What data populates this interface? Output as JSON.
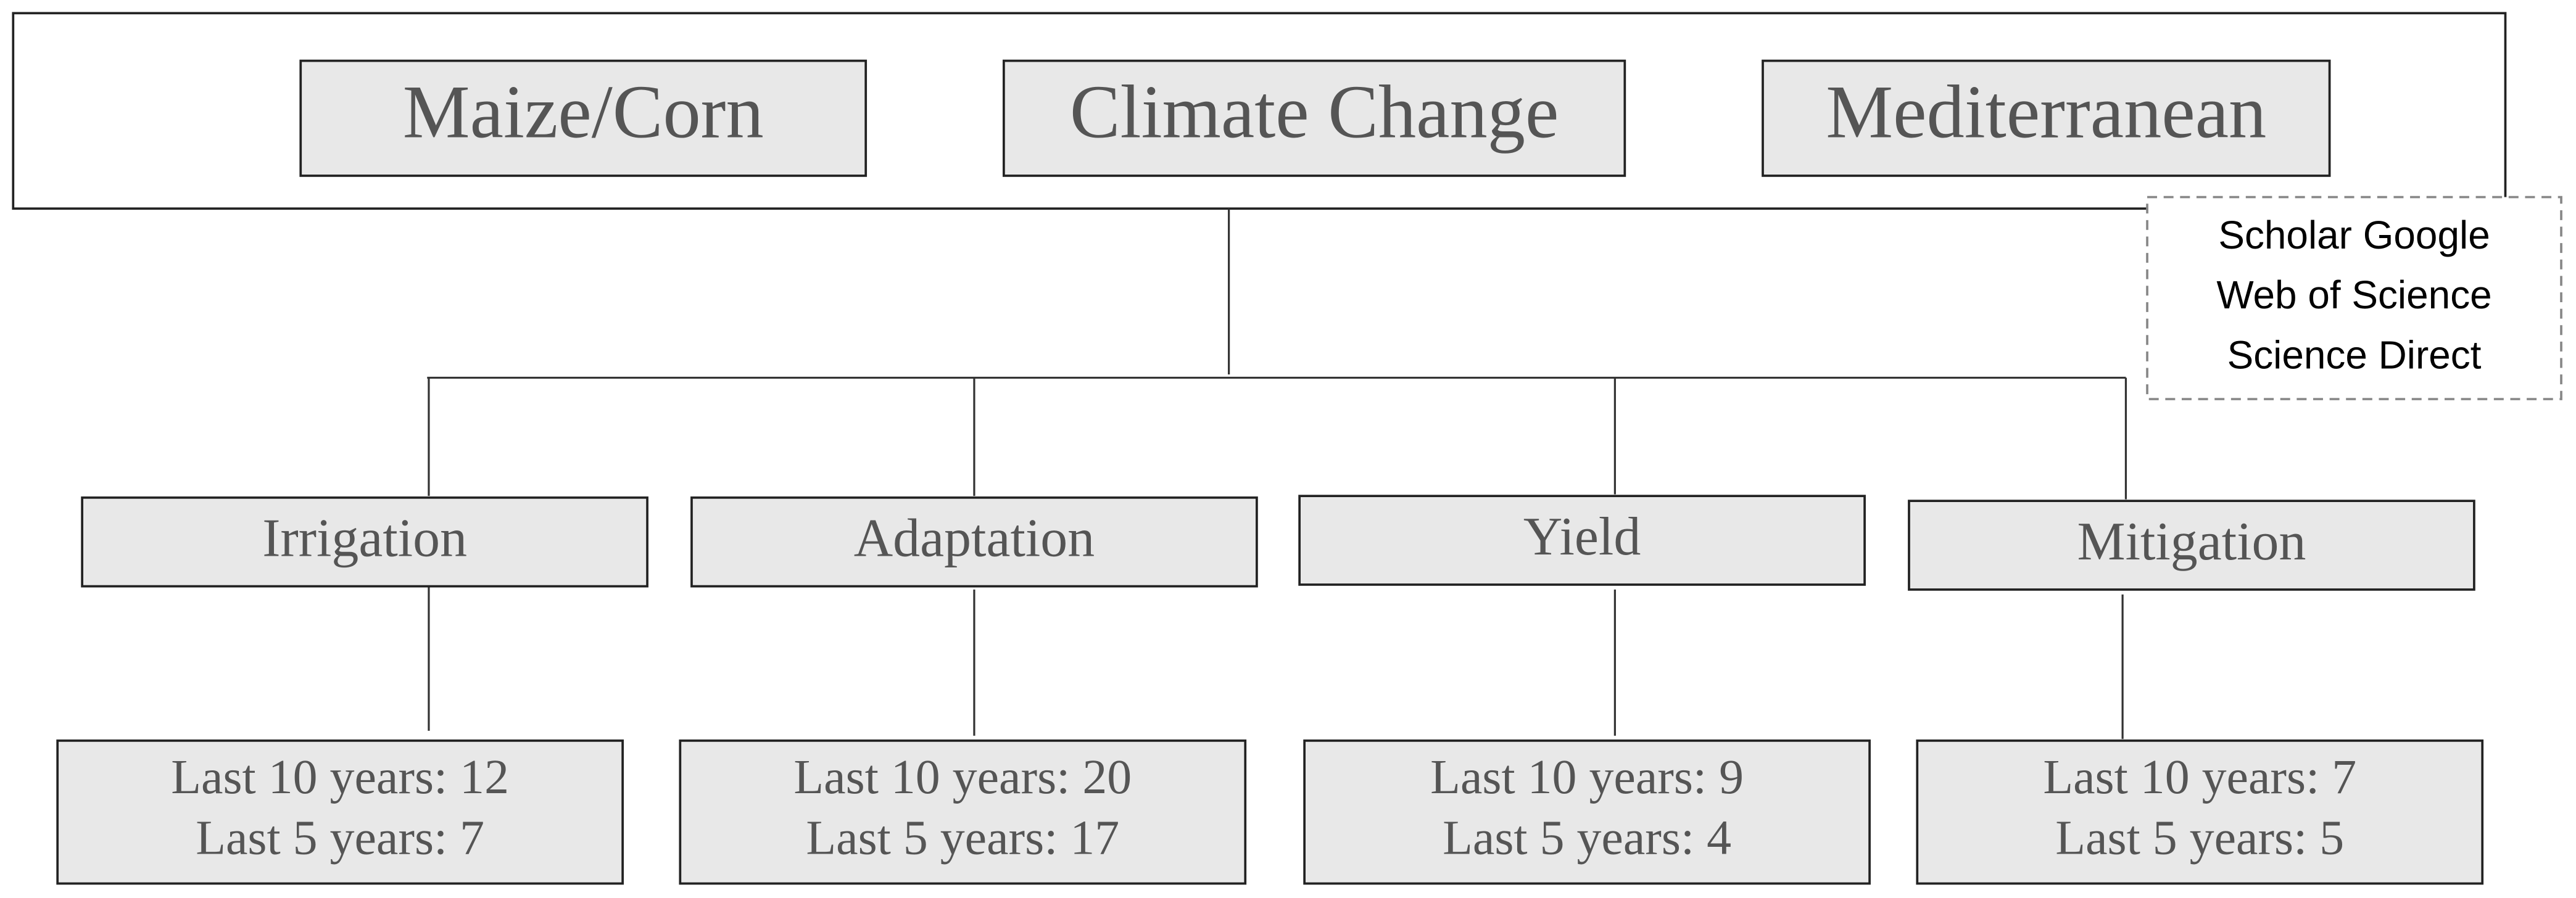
{
  "keywords": [
    "Maize/Corn",
    "Climate Change",
    "Mediterranean"
  ],
  "databases": [
    "Scholar Google",
    "Web of Science",
    "Science Direct"
  ],
  "topics": [
    {
      "label": "Irrigation",
      "counts": [
        "Last 10 years: 12",
        "Last 5 years: 7"
      ]
    },
    {
      "label": "Adaptation",
      "counts": [
        "Last 10 years: 20",
        "Last 5 years: 17"
      ]
    },
    {
      "label": "Yield",
      "counts": [
        "Last 10 years: 9",
        "Last 5 years: 4"
      ]
    },
    {
      "label": "Mitigation",
      "counts": [
        "Last 10 years: 7",
        "Last 5 years: 5"
      ]
    }
  ]
}
